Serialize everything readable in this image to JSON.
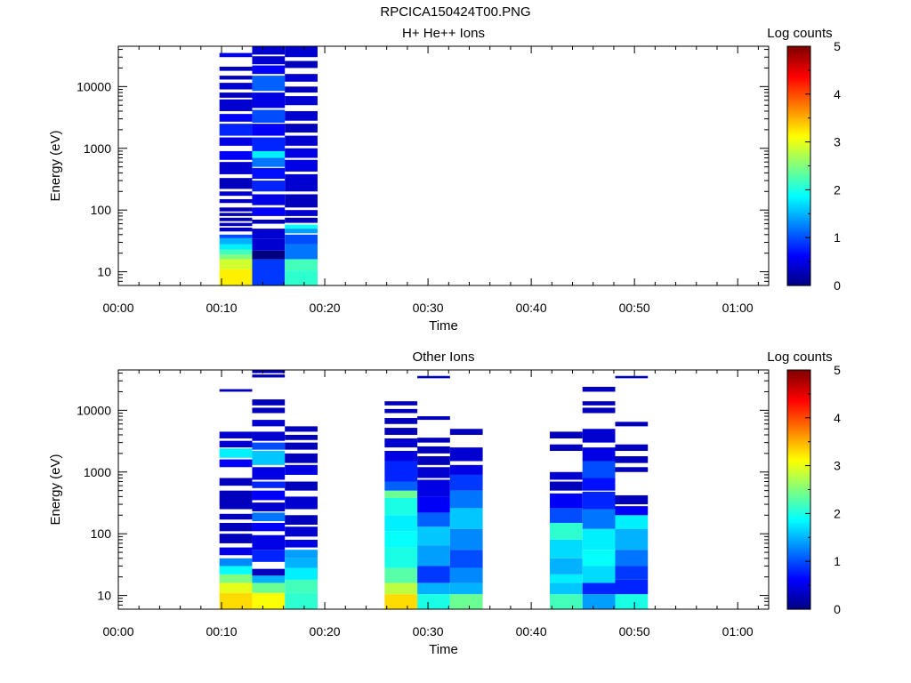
{
  "title": "RPCICA150424T00.PNG",
  "colormap": [
    "#00007f",
    "#0000ff",
    "#007fff",
    "#00ffff",
    "#7fff7f",
    "#ffff00",
    "#ff7f00",
    "#ff0000",
    "#7f0000"
  ],
  "chart_data": [
    {
      "type": "heatmap",
      "title": "H+ He++ Ions",
      "xlabel": "Time",
      "ylabel": "Energy (eV)",
      "colorbar_label": "Log counts",
      "x_scale": "time (hh:mm)",
      "y_scale": "log",
      "xlim": [
        "00:00",
        "01:03"
      ],
      "ylim": [
        6,
        45000
      ],
      "color_range": [
        0,
        5
      ],
      "x_ticks": [
        "00:00",
        "00:10",
        "00:20",
        "00:30",
        "00:40",
        "00:50",
        "01:00"
      ],
      "y_ticks": [
        "10",
        "100",
        "1000",
        "10000"
      ],
      "colorbar_ticks": [
        "0",
        "1",
        "2",
        "3",
        "4",
        "5"
      ],
      "columns": [
        {
          "start": "00:09:48",
          "end": "00:12:58",
          "bins": [
            [
              6,
              11,
              3.2
            ],
            [
              11,
              16,
              2.9
            ],
            [
              16,
              19,
              2.5
            ],
            [
              19,
              23,
              2.2
            ],
            [
              23,
              28,
              1.8
            ],
            [
              28,
              35,
              1.5
            ],
            [
              35,
              40,
              1.0
            ],
            [
              45,
              52,
              0.3
            ],
            [
              55,
              62,
              0.3
            ],
            [
              66,
              75,
              0.3
            ],
            [
              80,
              90,
              0.3
            ],
            [
              95,
              110,
              0.3
            ],
            [
              130,
              150,
              0.3
            ],
            [
              170,
              200,
              0.4
            ],
            [
              220,
              330,
              0.3
            ],
            [
              380,
              600,
              0.4
            ],
            [
              650,
              900,
              0.6
            ],
            [
              1100,
              1500,
              0.5
            ],
            [
              1600,
              2500,
              0.8
            ],
            [
              2700,
              3600,
              0.6
            ],
            [
              4000,
              6200,
              0.4
            ],
            [
              6600,
              8000,
              0.3
            ],
            [
              9000,
              11500,
              0.4
            ],
            [
              13000,
              15000,
              0.3
            ],
            [
              18000,
              21000,
              0.3
            ],
            [
              30000,
              35000,
              0.5
            ]
          ]
        },
        {
          "start": "00:12:58",
          "end": "00:16:08",
          "bins": [
            [
              6,
              16,
              0.9
            ],
            [
              16,
              22,
              0.0
            ],
            [
              22,
              34,
              0.4
            ],
            [
              34,
              50,
              0.4
            ],
            [
              60,
              70,
              0.3
            ],
            [
              80,
              110,
              0.6
            ],
            [
              120,
              180,
              0.5
            ],
            [
              200,
              300,
              0.8
            ],
            [
              320,
              480,
              0.7
            ],
            [
              500,
              700,
              1.2
            ],
            [
              700,
              900,
              1.8
            ],
            [
              900,
              1500,
              0.8
            ],
            [
              1600,
              2500,
              0.6
            ],
            [
              2600,
              4200,
              1.0
            ],
            [
              4500,
              8000,
              0.5
            ],
            [
              8500,
              15000,
              1.1
            ],
            [
              16000,
              22000,
              0.6
            ],
            [
              23000,
              31000,
              0.4
            ],
            [
              33000,
              45000,
              0.4
            ]
          ]
        },
        {
          "start": "00:16:08",
          "end": "00:19:18",
          "bins": [
            [
              6,
              10.5,
              2.1
            ],
            [
              10.5,
              16,
              2.2
            ],
            [
              16,
              28,
              1.2
            ],
            [
              28,
              40,
              1.0
            ],
            [
              42,
              50,
              1.4
            ],
            [
              50,
              58,
              1.9
            ],
            [
              62,
              75,
              0.3
            ],
            [
              80,
              100,
              0.4
            ],
            [
              110,
              180,
              0.3
            ],
            [
              200,
              380,
              0.4
            ],
            [
              420,
              650,
              0.5
            ],
            [
              700,
              1000,
              0.5
            ],
            [
              1100,
              1600,
              0.4
            ],
            [
              1800,
              2500,
              0.3
            ],
            [
              2800,
              4000,
              0.4
            ],
            [
              5000,
              7000,
              0.4
            ],
            [
              8000,
              10000,
              0.3
            ],
            [
              12000,
              16000,
              0.4
            ],
            [
              20000,
              26000,
              0.3
            ],
            [
              30000,
              45000,
              0.4
            ]
          ]
        }
      ]
    },
    {
      "type": "heatmap",
      "title": "Other Ions",
      "xlabel": "Time",
      "ylabel": "Energy (eV)",
      "colorbar_label": "Log counts",
      "x_scale": "time (hh:mm)",
      "y_scale": "log",
      "xlim": [
        "00:00",
        "01:03"
      ],
      "ylim": [
        6,
        45000
      ],
      "color_range": [
        0,
        5
      ],
      "x_ticks": [
        "00:00",
        "00:10",
        "00:20",
        "00:30",
        "00:40",
        "00:50",
        "01:00"
      ],
      "y_ticks": [
        "10",
        "100",
        "1000",
        "10000"
      ],
      "colorbar_ticks": [
        "0",
        "1",
        "2",
        "3",
        "4",
        "5"
      ],
      "columns": [
        {
          "start": "00:09:48",
          "end": "00:12:58",
          "bins": [
            [
              6,
              11,
              3.3
            ],
            [
              11,
              16,
              3.0
            ],
            [
              16,
              22,
              2.5
            ],
            [
              22,
              30,
              1.9
            ],
            [
              30,
              40,
              1.3
            ],
            [
              45,
              60,
              0.5
            ],
            [
              70,
              100,
              0.3
            ],
            [
              110,
              150,
              0.3
            ],
            [
              170,
              210,
              0.3
            ],
            [
              250,
              500,
              0.3
            ],
            [
              600,
              800,
              0.3
            ],
            [
              1200,
              1600,
              0.6
            ],
            [
              1700,
              2400,
              1.8
            ],
            [
              2500,
              3200,
              0.4
            ],
            [
              3500,
              4500,
              0.4
            ],
            [
              20000,
              22000,
              0.3
            ]
          ]
        },
        {
          "start": "00:12:58",
          "end": "00:16:08",
          "bins": [
            [
              6,
              11,
              3.1
            ],
            [
              11,
              16,
              2.4
            ],
            [
              16,
              21,
              1.5
            ],
            [
              21,
              27,
              0.3
            ],
            [
              35,
              55,
              0.8
            ],
            [
              55,
              95,
              0.5
            ],
            [
              110,
              150,
              0.6
            ],
            [
              160,
              220,
              1.2
            ],
            [
              230,
              320,
              0.4
            ],
            [
              350,
              500,
              0.6
            ],
            [
              550,
              700,
              0.8
            ],
            [
              750,
              1200,
              0.5
            ],
            [
              1300,
              2200,
              1.6
            ],
            [
              2300,
              3000,
              1.0
            ],
            [
              3200,
              4500,
              0.4
            ],
            [
              5500,
              7000,
              0.4
            ],
            [
              9000,
              11000,
              0.3
            ],
            [
              12000,
              15000,
              0.3
            ],
            [
              34000,
              38000,
              0.3
            ],
            [
              40000,
              45000,
              0.3
            ]
          ]
        },
        {
          "start": "00:16:08",
          "end": "00:19:18",
          "bins": [
            [
              6,
              11,
              2.1
            ],
            [
              11,
              18,
              2.2
            ],
            [
              18,
              28,
              1.8
            ],
            [
              28,
              40,
              1.5
            ],
            [
              40,
              55,
              1.4
            ],
            [
              60,
              80,
              0.5
            ],
            [
              90,
              130,
              0.4
            ],
            [
              140,
              200,
              0.3
            ],
            [
              250,
              400,
              0.4
            ],
            [
              500,
              700,
              0.3
            ],
            [
              900,
              1300,
              0.5
            ],
            [
              1400,
              2000,
              0.3
            ],
            [
              2300,
              3000,
              0.3
            ],
            [
              3300,
              4000,
              0.3
            ],
            [
              4500,
              5500,
              0.3
            ]
          ]
        },
        {
          "start": "00:25:48",
          "end": "00:28:58",
          "bins": [
            [
              6,
              10.5,
              3.3
            ],
            [
              10.5,
              16,
              2.8
            ],
            [
              16,
              28,
              2.3
            ],
            [
              28,
              60,
              2.0
            ],
            [
              60,
              110,
              1.9
            ],
            [
              110,
              200,
              1.8
            ],
            [
              200,
              380,
              2.0
            ],
            [
              380,
              500,
              2.4
            ],
            [
              500,
              700,
              1.1
            ],
            [
              700,
              1500,
              0.8
            ],
            [
              1500,
              2200,
              0.5
            ],
            [
              2500,
              3500,
              0.4
            ],
            [
              4000,
              5200,
              0.3
            ],
            [
              6000,
              7500,
              0.3
            ],
            [
              9000,
              10500,
              0.3
            ],
            [
              12000,
              14000,
              0.3
            ]
          ]
        },
        {
          "start": "00:28:58",
          "end": "00:32:08",
          "bins": [
            [
              6,
              10.5,
              2.0
            ],
            [
              10.5,
              16,
              1.5
            ],
            [
              16,
              30,
              0.9
            ],
            [
              30,
              65,
              1.4
            ],
            [
              65,
              130,
              1.6
            ],
            [
              130,
              220,
              1.1
            ],
            [
              220,
              400,
              0.6
            ],
            [
              400,
              750,
              0.5
            ],
            [
              800,
              1200,
              0.4
            ],
            [
              1300,
              1800,
              0.3
            ],
            [
              2000,
              2600,
              0.3
            ],
            [
              3000,
              3600,
              0.3
            ],
            [
              7000,
              8000,
              0.3
            ],
            [
              33000,
              36000,
              0.3
            ]
          ]
        },
        {
          "start": "00:32:08",
          "end": "00:35:18",
          "bins": [
            [
              6,
              10.5,
              2.4
            ],
            [
              10.5,
              16,
              1.5
            ],
            [
              16,
              28,
              1.3
            ],
            [
              28,
              55,
              1.0
            ],
            [
              55,
              120,
              1.3
            ],
            [
              120,
              260,
              1.6
            ],
            [
              260,
              500,
              1.2
            ],
            [
              500,
              900,
              0.9
            ],
            [
              900,
              1300,
              0.5
            ],
            [
              1500,
              2500,
              0.4
            ],
            [
              4000,
              5000,
              0.3
            ]
          ]
        },
        {
          "start": "00:41:48",
          "end": "00:44:58",
          "bins": [
            [
              6,
              10.5,
              2.2
            ],
            [
              10.5,
              16,
              1.6
            ],
            [
              16,
              22,
              1.8
            ],
            [
              22,
              40,
              1.5
            ],
            [
              40,
              80,
              1.7
            ],
            [
              80,
              150,
              2.1
            ],
            [
              150,
              260,
              1.0
            ],
            [
              260,
              450,
              0.6
            ],
            [
              500,
              700,
              0.3
            ],
            [
              750,
              1000,
              0.4
            ],
            [
              2200,
              2800,
              0.3
            ],
            [
              3500,
              4500,
              0.3
            ]
          ]
        },
        {
          "start": "00:44:58",
          "end": "00:48:08",
          "bins": [
            [
              6,
              10.5,
              1.4
            ],
            [
              10.5,
              16,
              0.8
            ],
            [
              16,
              30,
              1.7
            ],
            [
              30,
              55,
              1.9
            ],
            [
              55,
              120,
              1.8
            ],
            [
              120,
              250,
              1.2
            ],
            [
              250,
              480,
              0.8
            ],
            [
              500,
              800,
              0.7
            ],
            [
              800,
              1500,
              1.0
            ],
            [
              1500,
              2500,
              0.5
            ],
            [
              3000,
              5000,
              0.4
            ],
            [
              9000,
              11000,
              0.3
            ],
            [
              12000,
              14000,
              0.3
            ],
            [
              20000,
              24000,
              0.3
            ]
          ]
        },
        {
          "start": "00:48:08",
          "end": "00:51:18",
          "bins": [
            [
              6,
              10.5,
              2.0
            ],
            [
              10.5,
              18,
              0.8
            ],
            [
              18,
              30,
              0.9
            ],
            [
              30,
              55,
              1.2
            ],
            [
              55,
              120,
              1.5
            ],
            [
              120,
              200,
              1.8
            ],
            [
              200,
              280,
              0.6
            ],
            [
              300,
              420,
              0.3
            ],
            [
              1000,
              1200,
              0.3
            ],
            [
              1400,
              1800,
              0.3
            ],
            [
              2200,
              2800,
              0.3
            ],
            [
              5500,
              6500,
              0.3
            ],
            [
              33000,
              36000,
              0.3
            ]
          ]
        }
      ]
    }
  ]
}
